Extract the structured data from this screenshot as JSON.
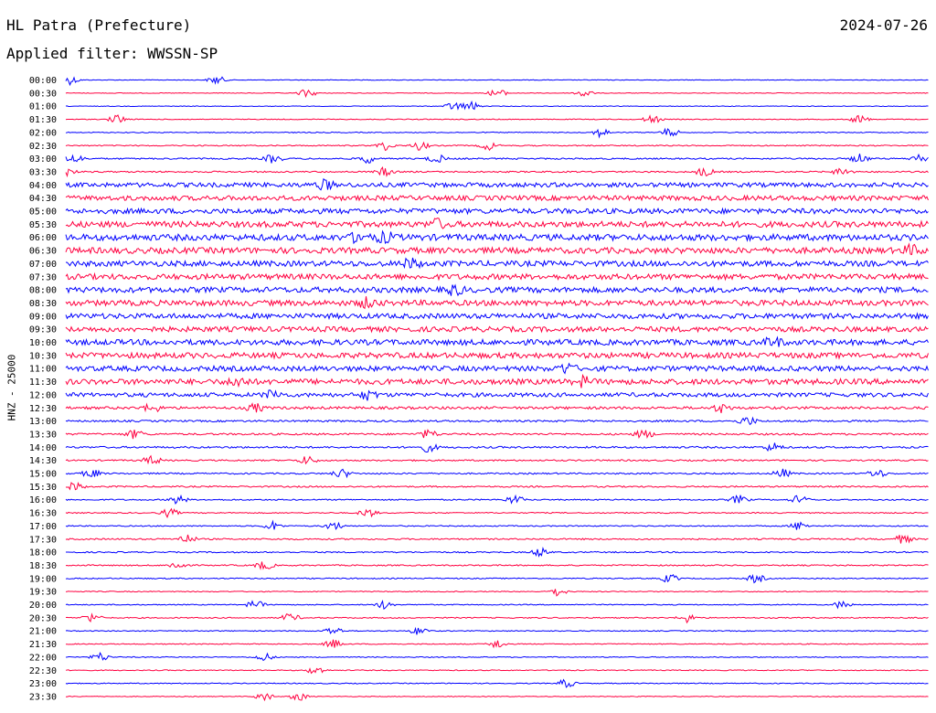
{
  "header": {
    "station": "HL Patra (Prefecture)",
    "date": "2024-07-26",
    "filter": "Applied filter: WWSSN-SP"
  },
  "chart_data": {
    "type": "line",
    "ylabel": "HNZ - 25000",
    "colors": [
      "#0000ff",
      "#ff0040"
    ],
    "rows": [
      {
        "time": "00:00",
        "noise": 0.35,
        "events": [
          0.005,
          0.175
        ]
      },
      {
        "time": "00:30",
        "noise": 0.35,
        "events": [
          0.28,
          0.5,
          0.6
        ]
      },
      {
        "time": "01:00",
        "noise": 0.35,
        "events": [
          0.45,
          0.47
        ]
      },
      {
        "time": "01:30",
        "noise": 0.45,
        "events": [
          0.06,
          0.68,
          0.92
        ]
      },
      {
        "time": "02:00",
        "noise": 0.5,
        "events": [
          0.62,
          0.7
        ]
      },
      {
        "time": "02:30",
        "noise": 0.6,
        "events": [
          0.37,
          0.41,
          0.49
        ]
      },
      {
        "time": "03:00",
        "noise": 0.8,
        "events": [
          0.01,
          0.24,
          0.35,
          0.43,
          0.92,
          0.99
        ]
      },
      {
        "time": "03:30",
        "noise": 0.8,
        "events": [
          0.0,
          0.37,
          0.74,
          0.9
        ]
      },
      {
        "time": "04:00",
        "noise": 2.4,
        "events": [
          0.3
        ]
      },
      {
        "time": "04:30",
        "noise": 2.6,
        "events": []
      },
      {
        "time": "05:00",
        "noise": 2.8,
        "events": []
      },
      {
        "time": "05:30",
        "noise": 3.2,
        "events": [
          0.43
        ]
      },
      {
        "time": "06:00",
        "noise": 3.4,
        "events": [
          0.34,
          0.37
        ]
      },
      {
        "time": "06:30",
        "noise": 3.2,
        "events": [
          0.98
        ]
      },
      {
        "time": "07:00",
        "noise": 3.0,
        "events": [
          0.4
        ]
      },
      {
        "time": "07:30",
        "noise": 3.0,
        "events": []
      },
      {
        "time": "08:00",
        "noise": 3.0,
        "events": [
          0.45
        ]
      },
      {
        "time": "08:30",
        "noise": 3.0,
        "events": [
          0.35
        ]
      },
      {
        "time": "09:00",
        "noise": 2.8,
        "events": []
      },
      {
        "time": "09:30",
        "noise": 2.8,
        "events": []
      },
      {
        "time": "10:00",
        "noise": 3.0,
        "events": [
          0.82
        ]
      },
      {
        "time": "10:30",
        "noise": 3.0,
        "events": []
      },
      {
        "time": "11:00",
        "noise": 2.8,
        "events": [
          0.58
        ]
      },
      {
        "time": "11:30",
        "noise": 3.0,
        "events": [
          0.2,
          0.6
        ]
      },
      {
        "time": "12:00",
        "noise": 2.2,
        "events": [
          0.24,
          0.35
        ]
      },
      {
        "time": "12:30",
        "noise": 1.4,
        "events": [
          0.1,
          0.22,
          0.76
        ]
      },
      {
        "time": "13:00",
        "noise": 1.0,
        "events": [
          0.79
        ]
      },
      {
        "time": "13:30",
        "noise": 1.0,
        "events": [
          0.08,
          0.42,
          0.67
        ]
      },
      {
        "time": "14:00",
        "noise": 1.0,
        "events": [
          0.42,
          0.82
        ]
      },
      {
        "time": "14:30",
        "noise": 0.8,
        "events": [
          0.1,
          0.28
        ]
      },
      {
        "time": "15:00",
        "noise": 0.8,
        "events": [
          0.03,
          0.32,
          0.83,
          0.94
        ]
      },
      {
        "time": "15:30",
        "noise": 0.8,
        "events": [
          0.01
        ]
      },
      {
        "time": "16:00",
        "noise": 0.7,
        "events": [
          0.13,
          0.52,
          0.78,
          0.85
        ]
      },
      {
        "time": "16:30",
        "noise": 0.6,
        "events": [
          0.12,
          0.35
        ]
      },
      {
        "time": "17:00",
        "noise": 0.6,
        "events": [
          0.24,
          0.31,
          0.85
        ]
      },
      {
        "time": "17:30",
        "noise": 0.8,
        "events": [
          0.14,
          0.97
        ]
      },
      {
        "time": "18:00",
        "noise": 0.7,
        "events": [
          0.55
        ]
      },
      {
        "time": "18:30",
        "noise": 0.7,
        "events": [
          0.13,
          0.23
        ]
      },
      {
        "time": "19:00",
        "noise": 0.6,
        "events": [
          0.7,
          0.8
        ]
      },
      {
        "time": "19:30",
        "noise": 0.5,
        "events": [
          0.57
        ]
      },
      {
        "time": "20:00",
        "noise": 0.5,
        "events": [
          0.22,
          0.37,
          0.9
        ]
      },
      {
        "time": "20:30",
        "noise": 0.6,
        "events": [
          0.03,
          0.26,
          0.72
        ]
      },
      {
        "time": "21:00",
        "noise": 0.5,
        "events": [
          0.31,
          0.41
        ]
      },
      {
        "time": "21:30",
        "noise": 0.5,
        "events": [
          0.31,
          0.5
        ]
      },
      {
        "time": "22:00",
        "noise": 0.5,
        "events": [
          0.04,
          0.23
        ]
      },
      {
        "time": "22:30",
        "noise": 0.5,
        "events": [
          0.29
        ]
      },
      {
        "time": "23:00",
        "noise": 0.5,
        "events": [
          0.58
        ]
      },
      {
        "time": "23:30",
        "noise": 0.4,
        "events": [
          0.23,
          0.27
        ]
      }
    ]
  }
}
